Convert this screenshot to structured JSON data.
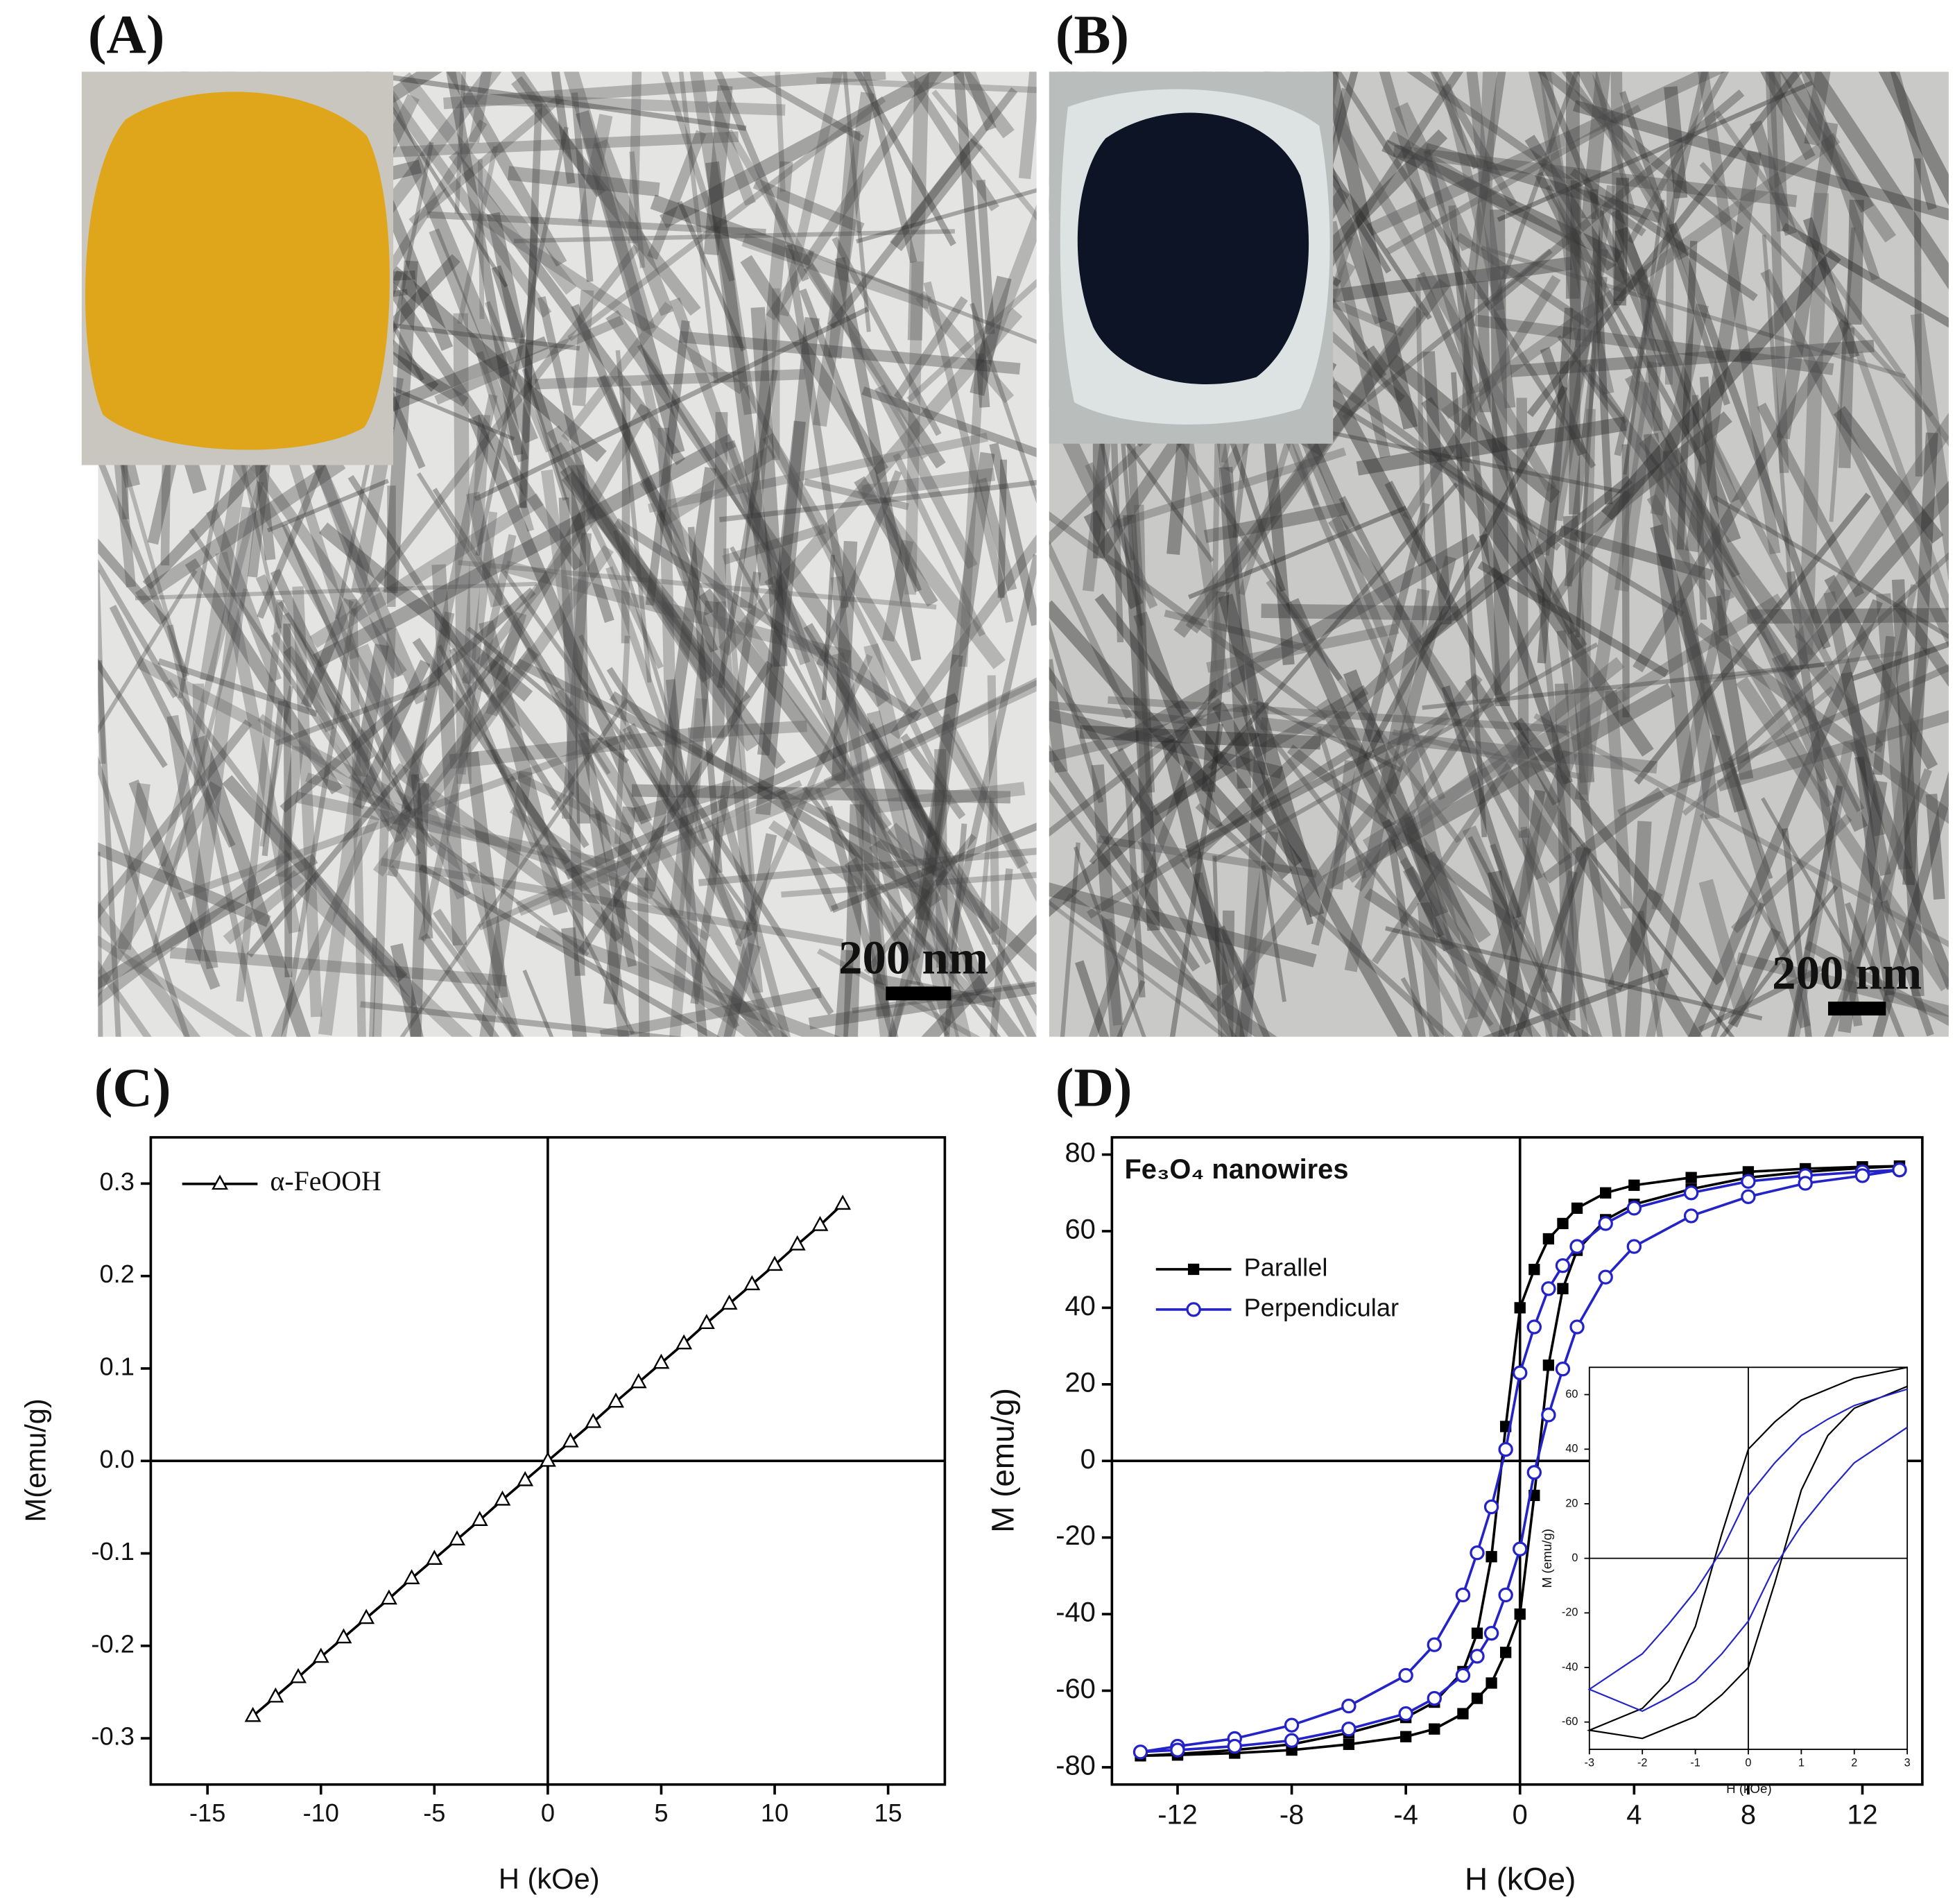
{
  "images": [
    {
      "label": "(A)",
      "scale_bar": "200 nm"
    },
    {
      "label": "(B)",
      "scale_bar": "200 nm"
    }
  ],
  "chart_data": [
    {
      "type": "line",
      "panel_label": "(C)",
      "xlabel": "H (kOe)",
      "ylabel": "M(emu/g)",
      "xlim": [
        -17.5,
        17.5
      ],
      "ylim": [
        -0.35,
        0.35
      ],
      "xticks": [
        -15,
        -10,
        -5,
        0,
        5,
        10,
        15
      ],
      "yticks": [
        -0.3,
        -0.2,
        -0.1,
        {
          "value": 0,
          "label": "0.0"
        },
        0.1,
        0.2,
        0.3
      ],
      "series": [
        {
          "name": "α-FeOOH",
          "color": "#000000",
          "marker": "triangle-open",
          "x": [
            -13,
            -12,
            -11,
            -10,
            -9,
            -8,
            -7,
            -6,
            -5,
            -4,
            -3,
            -2,
            -1,
            0,
            1,
            2,
            3,
            4,
            5,
            6,
            7,
            8,
            9,
            10,
            11,
            12,
            13
          ],
          "values": [
            -0.276,
            -0.255,
            -0.234,
            -0.212,
            -0.191,
            -0.17,
            -0.149,
            -0.127,
            -0.106,
            -0.085,
            -0.064,
            -0.042,
            -0.021,
            0,
            0.021,
            0.042,
            0.064,
            0.085,
            0.106,
            0.127,
            0.149,
            0.17,
            0.191,
            0.212,
            0.234,
            0.255,
            0.278
          ]
        }
      ]
    },
    {
      "type": "line",
      "panel_label": "(D)",
      "title": "Fe₃O₄ nanowires",
      "xlabel": "H (kOe)",
      "ylabel": "M (emu/g)",
      "xlim": [
        -14.3,
        14.1
      ],
      "ylim": [
        -84.5,
        84.5
      ],
      "xticks": [
        -12,
        -8,
        -4,
        0,
        4,
        8,
        12
      ],
      "yticks": [
        -80,
        -60,
        -40,
        -20,
        0,
        20,
        40,
        60,
        80
      ],
      "series": [
        {
          "name": "Parallel",
          "color": "#000000",
          "marker": "square",
          "x": [
            13.3,
            12,
            10,
            8,
            6,
            4,
            3,
            2,
            1.5,
            1,
            0.5,
            0,
            -0.5,
            -1,
            -1.5,
            -2,
            -3,
            -4,
            -6,
            -8,
            -10,
            -12,
            -13.3,
            -12,
            -10,
            -8,
            -6,
            -4,
            -3,
            -2,
            -1.5,
            -1,
            -0.5,
            0,
            0.5,
            1,
            1.5,
            2,
            3,
            4,
            6,
            8,
            10,
            12,
            13.3
          ],
          "values": [
            77,
            76.8,
            76.3,
            75.5,
            74,
            72,
            70,
            66,
            62,
            58,
            50,
            40,
            9,
            -25,
            -45,
            -55,
            -63,
            -67,
            -71,
            -74,
            -75.5,
            -76.5,
            -77,
            -76.8,
            -76.3,
            -75.5,
            -74,
            -72,
            -70,
            -66,
            -62,
            -58,
            -50,
            -40,
            -9,
            25,
            45,
            55,
            63,
            67,
            71,
            74,
            75.5,
            76.5,
            77
          ]
        },
        {
          "name": "Perpendicular",
          "color": "#2323c8",
          "marker": "circle-open",
          "x": [
            13.3,
            12,
            10,
            8,
            6,
            4,
            3,
            2,
            1.5,
            1,
            0.5,
            0,
            -0.5,
            -1,
            -1.5,
            -2,
            -3,
            -4,
            -6,
            -8,
            -10,
            -12,
            -13.3,
            -12,
            -10,
            -8,
            -6,
            -4,
            -3,
            -2,
            -1.5,
            -1,
            -0.5,
            0,
            0.5,
            1,
            1.5,
            2,
            3,
            4,
            6,
            8,
            10,
            12,
            13.3
          ],
          "values": [
            76,
            75.5,
            74.5,
            73,
            70,
            66,
            62,
            56,
            51,
            45,
            35,
            23,
            3,
            -12,
            -24,
            -35,
            -48,
            -56,
            -64,
            -69,
            -72.5,
            -74.5,
            -76,
            -75.5,
            -74.5,
            -73,
            -70,
            -66,
            -62,
            -56,
            -51,
            -45,
            -35,
            -23,
            -3,
            12,
            24,
            35,
            48,
            56,
            64,
            69,
            72.5,
            74.5,
            76
          ]
        }
      ]
    },
    {
      "type": "line",
      "xlabel": "H (kOe)",
      "ylabel": "M (emu/g)",
      "xlim": [
        -3,
        3
      ],
      "ylim": [
        -70,
        70
      ],
      "xticks": [
        -3,
        -2,
        -1,
        0,
        1,
        2,
        3
      ],
      "yticks": [
        -60,
        -40,
        -20,
        0,
        20,
        40,
        60
      ],
      "series": [
        {
          "color": "#000000",
          "x": [
            3,
            2,
            1.5,
            1,
            0.5,
            0,
            -0.5,
            -1,
            -1.5,
            -2,
            -3,
            -2,
            -1.5,
            -1,
            -0.5,
            0,
            0.5,
            1,
            1.5,
            2,
            3
          ],
          "values": [
            70,
            66,
            62,
            58,
            50,
            40,
            9,
            -25,
            -45,
            -55,
            -63,
            -66,
            -62,
            -58,
            -50,
            -40,
            -9,
            25,
            45,
            55,
            63
          ]
        },
        {
          "color": "#2323c8",
          "x": [
            3,
            2,
            1.5,
            1,
            0.5,
            0,
            -0.5,
            -1,
            -1.5,
            -2,
            -3,
            -2,
            -1.5,
            -1,
            -0.5,
            0,
            0.5,
            1,
            1.5,
            2,
            3
          ],
          "values": [
            62,
            56,
            51,
            45,
            35,
            23,
            3,
            -12,
            -24,
            -35,
            -48,
            -56,
            -51,
            -45,
            -35,
            -23,
            -3,
            12,
            24,
            35,
            48
          ]
        }
      ]
    }
  ]
}
